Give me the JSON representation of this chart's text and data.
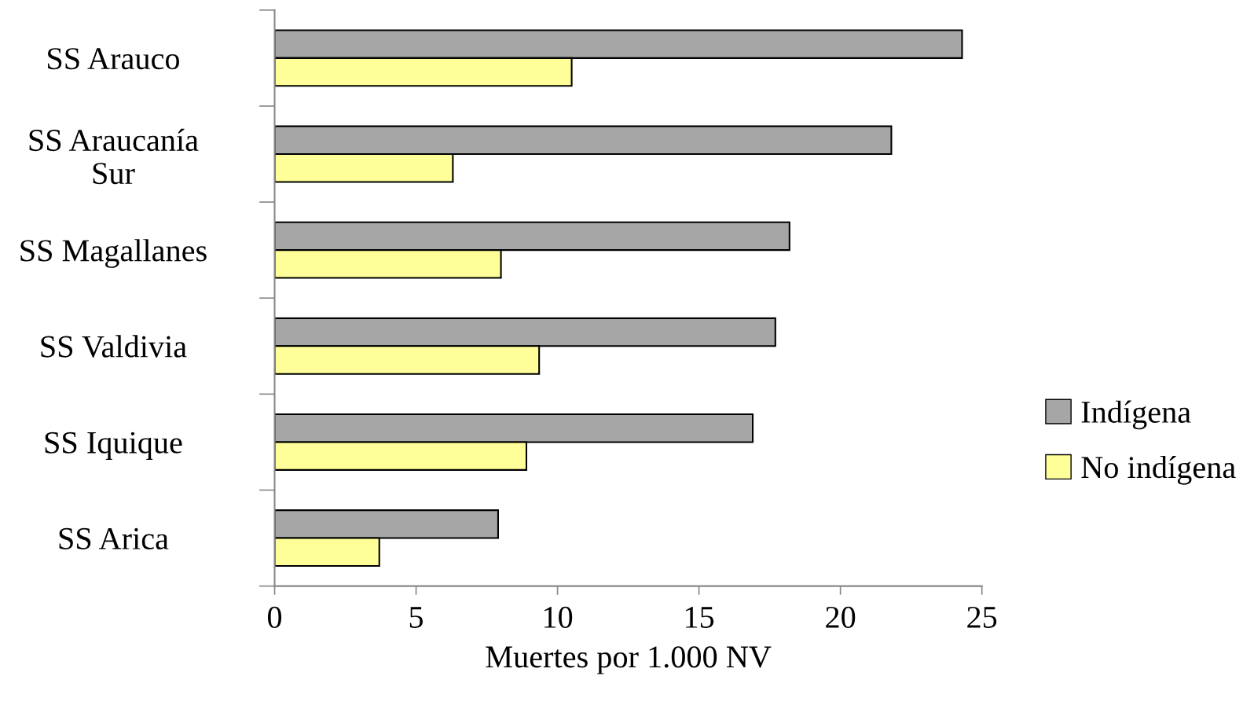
{
  "chart_data": {
    "type": "bar",
    "orientation": "horizontal",
    "xlabel": "Muertes por 1.000 NV",
    "categories": [
      "SS Arauco",
      "SS Araucanía\nSur",
      "SS Magallanes",
      "SS Valdivia",
      "SS Iquique",
      "SS Arica"
    ],
    "series": [
      {
        "name": "Indígena",
        "color": "#a6a6a6",
        "values": [
          24.3,
          21.8,
          18.2,
          17.7,
          16.9,
          7.9
        ]
      },
      {
        "name": "No indígena",
        "color": "#ffff99",
        "values": [
          10.5,
          6.3,
          8.0,
          9.35,
          8.9,
          3.7
        ]
      }
    ],
    "xlim": [
      0,
      25
    ],
    "xticks": [
      0,
      5,
      10,
      15,
      20,
      25
    ],
    "grid": false,
    "legend": "right"
  }
}
